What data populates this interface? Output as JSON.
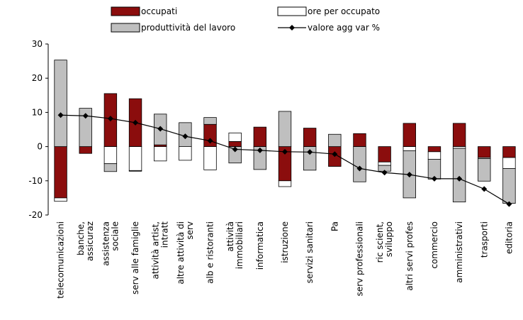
{
  "chart_data": {
    "type": "bar",
    "stacked": true,
    "categories": [
      "telecomunicazioni",
      "banche,\nassicuraz",
      "assistenza\nsociale",
      "serv alle famiglie",
      "attività artist,\nintratt",
      "altre attività di\nserv",
      "alb e ristoranti",
      "attività\nimmobiliari",
      "informatica",
      "istruzione",
      "servizi sanitari",
      "Pa",
      "serv professionali",
      "ric scient,\nsviluppo",
      "altri servi profes",
      "commercio",
      "amministrativi",
      "trasporti",
      "editoria"
    ],
    "series": [
      {
        "name": "occupati",
        "type": "bar",
        "color": "#8b0d0d",
        "values": [
          -15,
          -2,
          15.5,
          14,
          0.5,
          0,
          6.5,
          1.5,
          5.7,
          -10,
          5.4,
          -5.8,
          3.8,
          -4.5,
          6.8,
          -1.5,
          6.8,
          -3.2,
          -3.2
        ]
      },
      {
        "name": "ore per occupato",
        "type": "bar",
        "color": "#ffffff",
        "values": [
          -1,
          0,
          -5,
          -7,
          -4.2,
          -4,
          -6.8,
          2.5,
          0,
          -1.7,
          0,
          0,
          0,
          -1,
          -1.2,
          -2.2,
          -0.5,
          -0.3,
          -3.2
        ]
      },
      {
        "name": "produttività del lavoro",
        "type": "bar",
        "color": "#bfbfbf",
        "values": [
          25.3,
          11.2,
          -2.3,
          -0.2,
          9,
          7,
          2,
          -4.8,
          -6.7,
          10.3,
          -6.9,
          3.6,
          -10.3,
          -1.7,
          -13.8,
          -5.8,
          -15.7,
          -6.6,
          -10.2
        ]
      },
      {
        "name": "valore agg var %",
        "type": "line",
        "color": "#000000",
        "values": [
          9.2,
          9,
          8.2,
          7,
          5.2,
          3,
          1.7,
          -0.8,
          -1.1,
          -1.5,
          -1.6,
          -2.2,
          -6.4,
          -7.6,
          -8.2,
          -9.4,
          -9.4,
          -12.4,
          -16.8
        ]
      }
    ],
    "ylim": [
      -20,
      30
    ],
    "yticks": [
      -20,
      -10,
      0,
      10,
      20,
      30
    ]
  }
}
